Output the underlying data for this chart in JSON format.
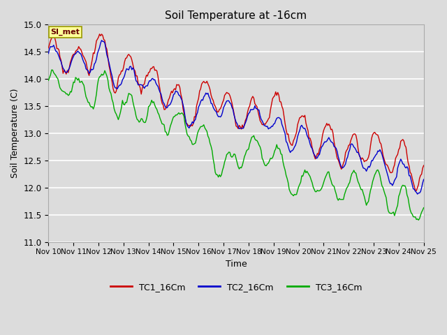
{
  "title": "Soil Temperature at -16cm",
  "xlabel": "Time",
  "ylabel": "Soil Temperature (C)",
  "ylim": [
    11.0,
    15.0
  ],
  "xlim": [
    0,
    360
  ],
  "background_color": "#dcdcdc",
  "series": {
    "TC1_16Cm": {
      "color": "#cc0000",
      "label": "TC1_16Cm"
    },
    "TC2_16Cm": {
      "color": "#0000cc",
      "label": "TC2_16Cm"
    },
    "TC3_16Cm": {
      "color": "#00aa00",
      "label": "TC3_16Cm"
    }
  },
  "xtick_labels": [
    "Nov 10",
    "Nov 11",
    "Nov 12",
    "Nov 13",
    "Nov 14",
    "Nov 15",
    "Nov 16",
    "Nov 17",
    "Nov 18",
    "Nov 19",
    "Nov 20",
    "Nov 21",
    "Nov 22",
    "Nov 23",
    "Nov 24",
    "Nov 25"
  ],
  "xtick_positions": [
    0,
    24,
    48,
    72,
    96,
    120,
    144,
    168,
    192,
    216,
    240,
    264,
    288,
    312,
    336,
    360
  ],
  "annotation_text": "SI_met",
  "ytick_labels": [
    "11.0",
    "11.5",
    "12.0",
    "12.5",
    "13.0",
    "13.5",
    "14.0",
    "14.5",
    "15.0"
  ],
  "ytick_positions": [
    11.0,
    11.5,
    12.0,
    12.5,
    13.0,
    13.5,
    14.0,
    14.5,
    15.0
  ]
}
